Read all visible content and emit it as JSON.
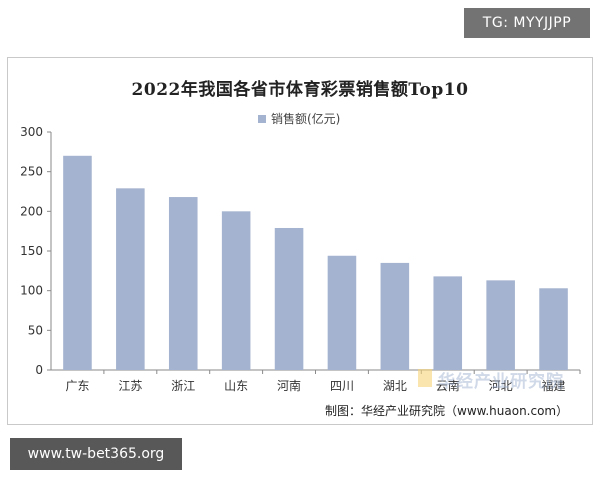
{
  "watermarks": {
    "top_right": "TG: MYYJJPP",
    "bottom_left": "www.tw-bet365.org",
    "logo_overlay": "华经产业研究院"
  },
  "source": "制图：华经产业研究院（www.huaon.com）",
  "colors": {
    "bar": "#a4b3cf",
    "axis": "#8a8a8a",
    "text": "#333333"
  },
  "chart_data": {
    "type": "bar",
    "title": "2022年我国各省市体育彩票销售额Top10",
    "categories": [
      "广东",
      "江苏",
      "浙江",
      "山东",
      "河南",
      "四川",
      "湖北",
      "云南",
      "河北",
      "福建"
    ],
    "series": [
      {
        "name": "销售额(亿元)",
        "values": [
          270,
          229,
          218,
          200,
          179,
          144,
          135,
          118,
          113,
          103
        ]
      }
    ],
    "ylim": [
      0,
      300
    ],
    "yticks": [
      0,
      50,
      100,
      150,
      200,
      250,
      300
    ],
    "grid": false,
    "legend_position": "top-center"
  }
}
